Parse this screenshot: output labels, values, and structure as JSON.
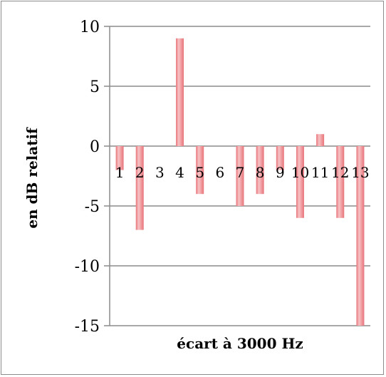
{
  "chart_data": {
    "type": "bar",
    "title": "",
    "xlabel": "écart à 3000 Hz",
    "ylabel": "en dB relatif",
    "categories": [
      "1",
      "2",
      "3",
      "4",
      "5",
      "6",
      "7",
      "8",
      "9",
      "10",
      "11",
      "12",
      "13"
    ],
    "values": [
      -2,
      -7,
      0,
      9,
      -4,
      0,
      -5,
      -4,
      -2,
      -6,
      1,
      -6,
      -15
    ],
    "ylim": [
      -15,
      10
    ],
    "yticks": [
      10,
      5,
      0,
      -5,
      -10,
      -15
    ],
    "ytick_labels": [
      "10",
      "5",
      "0",
      "-5",
      "-10",
      "-15"
    ],
    "grid": true,
    "legend": "none",
    "bar_color": "#e8747a",
    "bar_highlight": "#f7c3c5",
    "grid_color": "#8c8c8c"
  }
}
